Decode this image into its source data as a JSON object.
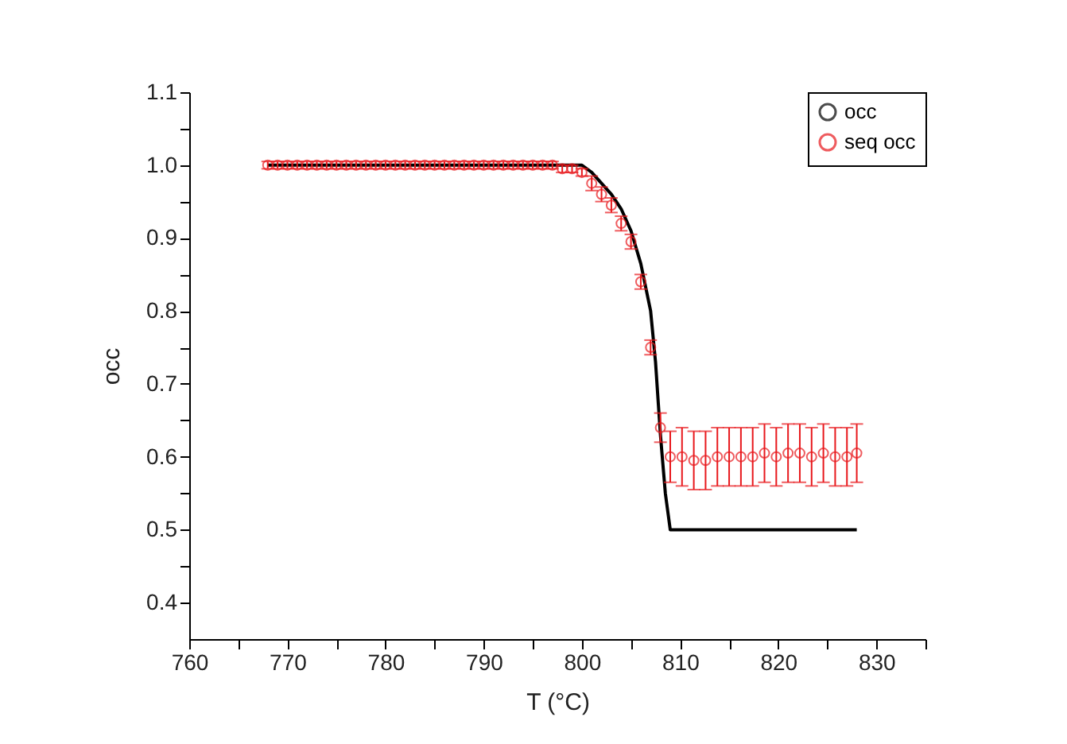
{
  "chart_data": {
    "type": "line",
    "xlabel": "T (°C)",
    "ylabel": "occ",
    "legend": "top right",
    "grid": false,
    "xlim": [
      760,
      835
    ],
    "xticks": [
      760,
      {
        "value": 765,
        "label": null
      },
      770,
      {
        "value": 775,
        "label": null
      },
      780,
      {
        "value": 785,
        "label": null
      },
      790,
      {
        "value": 795,
        "label": null
      },
      800,
      {
        "value": 805,
        "label": null
      },
      810,
      {
        "value": 815,
        "label": null
      },
      820,
      {
        "value": 825,
        "label": null
      },
      830,
      {
        "value": 835,
        "label": null
      }
    ],
    "ylim": [
      0.35,
      1.1
    ],
    "yticks": [
      {
        "value": 0.4,
        "label": "0.4"
      },
      {
        "value": 0.45,
        "label": null
      },
      {
        "value": 0.5,
        "label": "0.5"
      },
      {
        "value": 0.55,
        "label": null
      },
      {
        "value": 0.6,
        "label": "0.6"
      },
      {
        "value": 0.65,
        "label": null
      },
      {
        "value": 0.7,
        "label": "0.7"
      },
      {
        "value": 0.75,
        "label": null
      },
      {
        "value": 0.8,
        "label": "0.8"
      },
      {
        "value": 0.85,
        "label": null
      },
      {
        "value": 0.9,
        "label": "0.9"
      },
      {
        "value": 0.95,
        "label": null
      },
      {
        "value": 1.0,
        "label": "1.0"
      },
      {
        "value": 1.05,
        "label": null
      },
      {
        "value": 1.1,
        "label": "1.1"
      }
    ],
    "series": [
      {
        "name": "occ",
        "color": "#000000",
        "marker": "none",
        "x": [
          768,
          772,
          776,
          780,
          784,
          788,
          792,
          796,
          798,
          800,
          801,
          802,
          803,
          804,
          805,
          806,
          807,
          807.5,
          808,
          808.5,
          809,
          812,
          816,
          820,
          824,
          828
        ],
        "values": [
          1.0,
          1.0,
          1.0,
          1.0,
          1.0,
          1.0,
          1.0,
          1.0,
          1.0,
          1.0,
          0.99,
          0.975,
          0.96,
          0.94,
          0.91,
          0.865,
          0.8,
          0.73,
          0.63,
          0.55,
          0.5,
          0.5,
          0.5,
          0.5,
          0.5,
          0.5
        ]
      },
      {
        "name": "seq occ",
        "type": "scatter",
        "color": "#e8181c",
        "marker": "circle",
        "x": [
          768,
          769,
          770,
          771,
          772,
          773,
          774,
          775,
          776,
          777,
          778,
          779,
          780,
          781,
          782,
          783,
          784,
          785,
          786,
          787,
          788,
          789,
          790,
          791,
          792,
          793,
          794,
          795,
          796,
          797,
          798,
          799,
          800,
          801,
          802,
          803,
          804,
          805,
          806,
          807,
          808,
          809,
          810.2,
          811.4,
          812.6,
          813.8,
          815,
          816.2,
          817.4,
          818.6,
          819.8,
          821,
          822.2,
          823.4,
          824.6,
          825.8,
          827,
          828
        ],
        "values": [
          1.0,
          1.0,
          1.0,
          1.0,
          1.0,
          1.0,
          1.0,
          1.0,
          1.0,
          1.0,
          1.0,
          1.0,
          1.0,
          1.0,
          1.0,
          1.0,
          1.0,
          1.0,
          1.0,
          1.0,
          1.0,
          1.0,
          1.0,
          1.0,
          1.0,
          1.0,
          1.0,
          1.0,
          1.0,
          1.0,
          0.995,
          0.995,
          0.99,
          0.975,
          0.96,
          0.945,
          0.92,
          0.895,
          0.84,
          0.75,
          0.64,
          0.6,
          0.6,
          0.595,
          0.595,
          0.6,
          0.6,
          0.6,
          0.6,
          0.605,
          0.6,
          0.605,
          0.605,
          0.6,
          0.605,
          0.6,
          0.6,
          0.605
        ],
        "errors": [
          0.005,
          0.005,
          0.005,
          0.005,
          0.005,
          0.005,
          0.005,
          0.005,
          0.005,
          0.005,
          0.005,
          0.005,
          0.005,
          0.005,
          0.005,
          0.005,
          0.005,
          0.005,
          0.005,
          0.005,
          0.005,
          0.005,
          0.005,
          0.005,
          0.005,
          0.005,
          0.005,
          0.005,
          0.005,
          0.005,
          0.005,
          0.005,
          0.005,
          0.01,
          0.01,
          0.01,
          0.01,
          0.01,
          0.01,
          0.01,
          0.02,
          0.035,
          0.04,
          0.04,
          0.04,
          0.04,
          0.04,
          0.04,
          0.04,
          0.04,
          0.04,
          0.04,
          0.04,
          0.04,
          0.04,
          0.04,
          0.04,
          0.04
        ]
      }
    ]
  }
}
